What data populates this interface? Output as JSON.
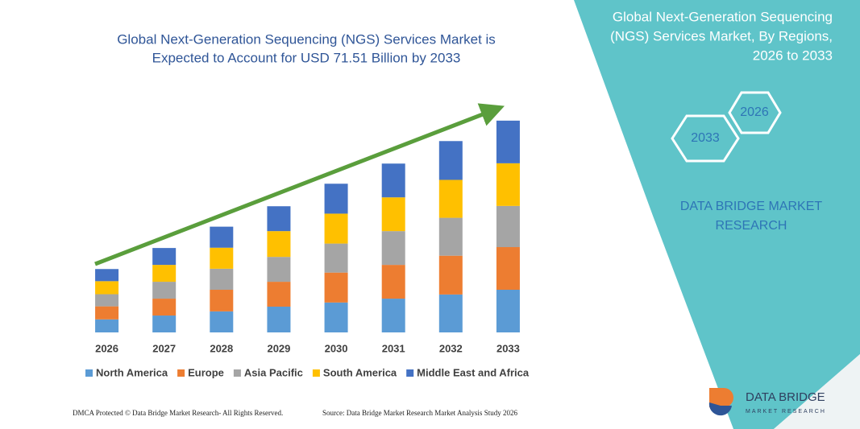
{
  "chart_data": {
    "type": "stacked_bar",
    "title": [
      "Global Next-Generation Sequencing (NGS) Services Market is",
      "Expected to Account for USD 71.51 Billion by 2033"
    ],
    "categories": [
      "2026",
      "2027",
      "2028",
      "2029",
      "2030",
      "2031",
      "2032",
      "2033"
    ],
    "series": [
      {
        "name": "North America",
        "color": "#5b9bd5",
        "values": [
          4.4,
          5.7,
          7.1,
          8.7,
          10.1,
          11.4,
          12.8,
          14.4
        ]
      },
      {
        "name": "Europe",
        "color": "#ed7d31",
        "values": [
          4.4,
          5.7,
          7.3,
          8.4,
          10.1,
          11.4,
          13.1,
          14.4
        ]
      },
      {
        "name": "Asia Pacific",
        "color": "#a5a5a5",
        "values": [
          4.1,
          5.7,
          7.1,
          8.4,
          9.8,
          11.4,
          12.8,
          13.9
        ]
      },
      {
        "name": "South America",
        "color": "#ffc000",
        "values": [
          4.4,
          5.7,
          7.1,
          8.7,
          10.1,
          11.4,
          12.8,
          14.4
        ]
      },
      {
        "name": "Middle East and Africa",
        "color": "#4472c4",
        "values": [
          4.1,
          5.7,
          7.1,
          8.4,
          10.1,
          11.4,
          13.1,
          14.4
        ]
      }
    ],
    "ylim": [
      0,
      75
    ]
  },
  "panel": {
    "title": [
      "Global Next-Generation Sequencing",
      "(NGS) Services Market, By Regions,",
      "2026 to 2033"
    ],
    "hex_start": "2026",
    "hex_end": "2033",
    "brand": [
      "DATA BRIDGE MARKET",
      "RESEARCH"
    ]
  },
  "logo": {
    "name": "DATA BRIDGE",
    "tagline": "MARKET RESEARCH"
  },
  "footer": {
    "left": "DMCA Protected © Data Bridge Market Research-  All Rights Reserved.",
    "right": "Source: Data Bridge Market Research  Market Analysis Study 2026"
  }
}
